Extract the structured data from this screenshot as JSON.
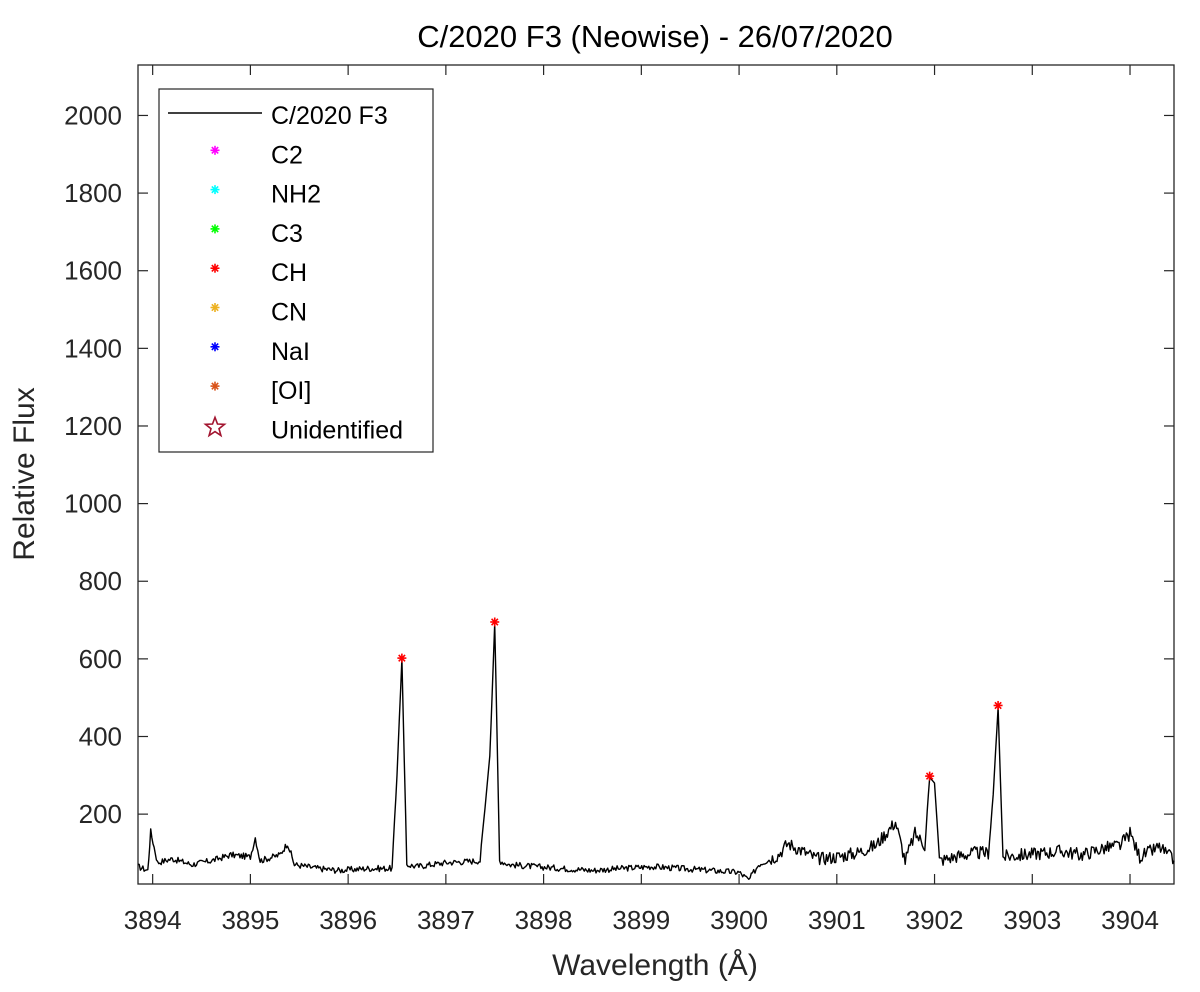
{
  "chart_data": {
    "type": "line",
    "title": "C/2020 F3 (Neowise) - 26/07/2020",
    "xlabel": "Wavelength (Å)",
    "ylabel": "Relative Flux",
    "xlim": [
      3893.85,
      3904.45
    ],
    "ylim": [
      20,
      2130
    ],
    "xticks": [
      "3894",
      "3895",
      "3896",
      "3897",
      "3898",
      "3899",
      "3900",
      "3901",
      "3902",
      "3903",
      "3904"
    ],
    "yticks": [
      "200",
      "400",
      "600",
      "800",
      "1000",
      "1200",
      "1400",
      "1600",
      "1800",
      "2000"
    ],
    "grid": false,
    "legend_position": "top-left",
    "legend": [
      {
        "label": "C/2020 F3",
        "marker": "line",
        "color": "#000000"
      },
      {
        "label": "C2",
        "marker": "asterisk",
        "color": "#ff00ff"
      },
      {
        "label": "NH2",
        "marker": "asterisk",
        "color": "#00ffff"
      },
      {
        "label": "C3",
        "marker": "asterisk",
        "color": "#00ff00"
      },
      {
        "label": "CH",
        "marker": "asterisk",
        "color": "#ff0000"
      },
      {
        "label": "CN",
        "marker": "asterisk",
        "color": "#edb120"
      },
      {
        "label": "NaI",
        "marker": "asterisk",
        "color": "#0000ff"
      },
      {
        "label": "[OI]",
        "marker": "asterisk",
        "color": "#d95319"
      },
      {
        "label": "Unidentified",
        "marker": "star",
        "color": "#a2142f"
      }
    ],
    "series": [
      {
        "name": "C/2020 F3",
        "color": "#000000",
        "x": [
          3893.85,
          3893.95,
          3893.98,
          3894.05,
          3894.2,
          3894.4,
          3894.6,
          3894.8,
          3895.0,
          3895.05,
          3895.1,
          3895.3,
          3895.38,
          3895.45,
          3895.7,
          3895.9,
          3896.2,
          3896.45,
          3896.5,
          3896.55,
          3896.6,
          3896.7,
          3897.0,
          3897.35,
          3897.45,
          3897.5,
          3897.55,
          3897.65,
          3897.9,
          3898.2,
          3898.5,
          3898.8,
          3899.1,
          3899.4,
          3899.7,
          3900.0,
          3900.1,
          3900.2,
          3900.4,
          3900.5,
          3900.8,
          3901.0,
          3901.2,
          3901.4,
          3901.6,
          3901.7,
          3901.8,
          3901.9,
          3901.95,
          3902.0,
          3902.05,
          3902.2,
          3902.4,
          3902.55,
          3902.6,
          3902.65,
          3902.7,
          3902.9,
          3903.1,
          3903.3,
          3903.5,
          3903.7,
          3903.9,
          3904.0,
          3904.1,
          3904.3,
          3904.45
        ],
        "y": [
          65,
          55,
          155,
          75,
          85,
          70,
          80,
          95,
          90,
          140,
          80,
          95,
          125,
          70,
          60,
          55,
          60,
          60,
          300,
          600,
          70,
          65,
          75,
          80,
          350,
          690,
          80,
          70,
          65,
          60,
          55,
          60,
          65,
          60,
          55,
          50,
          30,
          70,
          95,
          125,
          85,
          90,
          100,
          120,
          180,
          80,
          150,
          120,
          295,
          280,
          80,
          90,
          100,
          100,
          250,
          475,
          90,
          95,
          100,
          105,
          95,
          110,
          120,
          150,
          90,
          115,
          80
        ]
      }
    ],
    "markers": [
      {
        "name": "CH",
        "x": 3896.55,
        "y": 602,
        "color": "#ff0000"
      },
      {
        "name": "CH",
        "x": 3897.5,
        "y": 695,
        "color": "#ff0000"
      },
      {
        "name": "CH",
        "x": 3901.95,
        "y": 298,
        "color": "#ff0000"
      },
      {
        "name": "CH",
        "x": 3902.65,
        "y": 480,
        "color": "#ff0000"
      }
    ]
  }
}
